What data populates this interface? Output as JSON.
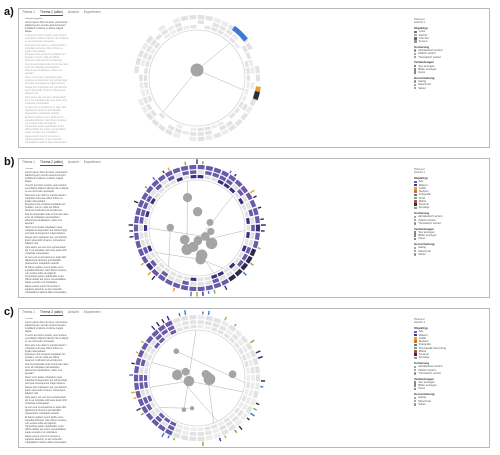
{
  "colors": {
    "ring_light": "#e2e2e2",
    "ring_mid": "#c9c9c9",
    "node": "#a4a4a4",
    "purple": "#6a5aa8",
    "purple_dark": "#3c2f80",
    "navy": "#2a2a4a",
    "orange": "#e0a030",
    "blue": "#3b78d8",
    "link": "#b0b0b0"
  },
  "panels": [
    {
      "label": "a)",
      "tabs": [
        "Thema 1",
        "Thema 2 (aktiv)",
        "Ansicht",
        "Exportieren"
      ],
      "text": [
        {
          "t": "Ausstellungstext",
          "cls": ""
        },
        {
          "t": "Lorem ipsum dolor sit amet, consectetur adipiscing elit, sed do eiusmod tempor incididunt ut labore et dolore magna aliqua.",
          "cls": ""
        },
        {
          "t": "Ut enim ad minim veniam, quis nostrud exercitation ullamco laboris nisi ut aliquip ex ea commodo consequat.",
          "cls": "dim"
        },
        {
          "t": "Duis aute irure dolor in reprehenderit in voluptate velit esse cillum dolore eu fugiat nulla pariatur.",
          "cls": "dim"
        },
        {
          "t": "Excepteur sint occaecat cupidatat non proident, sunt in culpa qui officia deserunt mollit anim id est laborum.",
          "cls": "dim"
        },
        {
          "t": "Sed ut perspiciatis unde omnis iste natus error sit voluptatem accusantium doloremque laudantium, totam rem aperiam.",
          "cls": "dim"
        },
        {
          "t": "Nemo enim ipsam voluptatem quia voluptas sit aspernatur aut odit aut fugit, sed quia consequuntur magni dolores.",
          "cls": "dim"
        },
        {
          "t": "Neque porro quisquam est, qui dolorem ipsum quia dolor sit amet, consectetur, adipisci velit.",
          "cls": "dim"
        },
        {
          "t": "Quis autem vel eum iure reprehenderit qui in ea voluptate velit esse quam nihil molestiae consequatur.",
          "cls": "dim"
        },
        {
          "t": "At vero eos et accusamus et iusto odio dignissimos ducimus qui blanditiis praesentium voluptatum deleniti.",
          "cls": "dim"
        },
        {
          "t": "Et harum quidem rerum facilis est et expedita distinctio. Nam libero tempore, cum soluta nobis est eligendi.",
          "cls": "dim"
        },
        {
          "t": "Temporibus autem quibusdam et aut officiis debitis aut rerum necessitatibus saepe eveniet ut et voluptates.",
          "cls": "dim"
        },
        {
          "t": "Itaque earum rerum hic tenetur a sapiente delectus, ut aut reiciendis voluptatibus maiores alias consequatur.",
          "cls": "dim"
        }
      ],
      "ring_mode": "sparse",
      "highlights": [
        {
          "pos": 0.1,
          "span": 0.045,
          "color": "blue"
        },
        {
          "pos": 0.272,
          "span": 0.035,
          "color": "orange"
        },
        {
          "pos": 0.285,
          "span": 0.02,
          "color": "navy"
        }
      ],
      "legend": {
        "top": [
          "Thema 2",
          "Ansicht 1"
        ],
        "groups": [
          {
            "title": "Objekttyp",
            "rows": [
              {
                "label": "Links",
                "swatch": "#3b78d8"
              },
              {
                "label": "Rechts",
                "swatch": "#e0a030"
              },
              {
                "label": "Link-Set",
                "swatch": "#6a5aa8"
              },
              {
                "label": "Knoten",
                "swatch": "#999999"
              }
            ]
          },
          {
            "title": "Sortierung",
            "rows": [
              {
                "label": "Alphabetisch sortiert",
                "radio": true
              },
              {
                "label": "Zeitlich sortiert",
                "radio": false
              },
              {
                "label": "Thematisch sortiert",
                "radio": false
              }
            ]
          },
          {
            "title": "Verbindungen",
            "rows": [
              {
                "label": "Text anzeigen",
                "check": true
              },
              {
                "label": "Bilder anzeigen",
                "check": true
              },
              {
                "label": "Keine",
                "check": false
              }
            ]
          },
          {
            "title": "Hervorhebung",
            "rows": [
              {
                "label": "Häufig",
                "radio": true
              },
              {
                "label": "Manchmal",
                "radio": false
              },
              {
                "label": "Selten",
                "radio": false
              }
            ]
          }
        ]
      }
    },
    {
      "label": "b)",
      "tabs": [
        "Thema 1",
        "Thema 2 (aktiv)",
        "Ansicht",
        "Exportieren"
      ],
      "text": [
        {
          "t": "Thema",
          "cls": ""
        },
        {
          "t": "Lorem ipsum dolor sit amet, consectetur adipiscing elit, sed do eiusmod tempor incididunt ut labore et dolore magna aliqua.",
          "cls": ""
        },
        {
          "t": "Ut enim ad minim veniam, quis nostrud exercitation ullamco laboris nisi ut aliquip ex ea commodo consequat.",
          "cls": ""
        },
        {
          "t": "Duis aute irure dolor in reprehenderit in voluptate velit esse cillum dolore eu fugiat nulla pariatur.",
          "cls": ""
        },
        {
          "t": "Excepteur sint occaecat cupidatat non proident, sunt in culpa qui officia deserunt mollit anim id est laborum.",
          "cls": ""
        },
        {
          "t": "Sed ut perspiciatis unde omnis iste natus error sit voluptatem accusantium doloremque laudantium, totam rem aperiam.",
          "cls": ""
        },
        {
          "t": "Nemo enim ipsam voluptatem quia voluptas sit aspernatur aut odit aut fugit, sed quia consequuntur magni dolores.",
          "cls": ""
        },
        {
          "t": "Neque porro quisquam est, qui dolorem ipsum quia dolor sit amet, consectetur, adipisci velit.",
          "cls": ""
        },
        {
          "t": "Quis autem vel eum iure reprehenderit qui in ea voluptate velit esse quam nihil molestiae consequatur.",
          "cls": ""
        },
        {
          "t": "At vero eos et accusamus et iusto odio dignissimos ducimus qui blanditiis praesentium voluptatum deleniti.",
          "cls": ""
        },
        {
          "t": "Et harum quidem rerum facilis est et expedita distinctio. Nam libero tempore, cum soluta nobis est eligendi.",
          "cls": ""
        },
        {
          "t": "Temporibus autem quibusdam et aut officiis debitis aut rerum necessitatibus saepe eveniet ut et voluptates.",
          "cls": ""
        },
        {
          "t": "Itaque earum rerum hic tenetur a sapiente delectus, ut aut reiciendis voluptatibus maiores alias consequatur.",
          "cls": ""
        }
      ],
      "ring_mode": "full",
      "highlights": [],
      "legend": {
        "top": [
          "Thema 2",
          "Ansicht 1"
        ],
        "groups": [
          {
            "title": "Objekttyp",
            "rows": [
              {
                "label": "Alle",
                "swatch": "#6a5aa8"
              },
              {
                "label": "Malerei",
                "swatch": "#3c2f80"
              },
              {
                "label": "Grafik",
                "swatch": "#e0a030"
              },
              {
                "label": "Skulptur",
                "swatch": "#d07020"
              },
              {
                "label": "Fotografie",
                "swatch": "#3b78d8"
              },
              {
                "label": "Textil",
                "swatch": "#7fb04a"
              },
              {
                "label": "Möbel",
                "swatch": "#b04a4a"
              },
              {
                "label": "Keramik",
                "swatch": "#2a2a4a"
              },
              {
                "label": "Sonstige",
                "swatch": "#999999"
              }
            ]
          },
          {
            "title": "Sortierung",
            "rows": [
              {
                "label": "Alphabetisch sortiert",
                "radio": true
              },
              {
                "label": "Zeitlich sortiert",
                "radio": false
              },
              {
                "label": "Thematisch sortiert",
                "radio": false
              }
            ]
          },
          {
            "title": "Verbindungen",
            "rows": [
              {
                "label": "Text anzeigen",
                "check": true
              },
              {
                "label": "Bilder anzeigen",
                "check": true
              },
              {
                "label": "Keine",
                "check": false
              }
            ]
          },
          {
            "title": "Hervorhebung",
            "rows": [
              {
                "label": "Häufig",
                "radio": true
              },
              {
                "label": "Manchmal",
                "radio": false
              },
              {
                "label": "Selten",
                "radio": false
              }
            ]
          }
        ]
      }
    },
    {
      "label": "c)",
      "tabs": [
        "Thema 1",
        "Thema 2 (aktiv)",
        "Ansicht",
        "Exportieren"
      ],
      "text": [
        {
          "t": "Thema",
          "cls": ""
        },
        {
          "t": "Lorem ipsum dolor sit amet, consectetur adipiscing elit, sed do eiusmod tempor incididunt ut labore et dolore magna aliqua.",
          "cls": ""
        },
        {
          "t": "Ut enim ad minim veniam, quis nostrud exercitation ullamco laboris nisi ut aliquip ex ea commodo consequat.",
          "cls": ""
        },
        {
          "t": "Duis aute irure dolor in reprehenderit in voluptate velit esse cillum dolore eu fugiat nulla pariatur.",
          "cls": ""
        },
        {
          "t": "Excepteur sint occaecat cupidatat non proident, sunt in culpa qui officia deserunt mollit anim id est laborum.",
          "cls": ""
        },
        {
          "t": "Sed ut perspiciatis unde omnis iste natus error sit voluptatem accusantium doloremque laudantium, totam rem aperiam.",
          "cls": ""
        },
        {
          "t": "Nemo enim ipsam voluptatem quia voluptas sit aspernatur aut odit aut fugit, sed quia consequuntur magni dolores.",
          "cls": ""
        },
        {
          "t": "Neque porro quisquam est, qui dolorem ipsum quia dolor sit amet, consectetur, adipisci velit.",
          "cls": ""
        },
        {
          "t": "Quis autem vel eum iure reprehenderit qui in ea voluptate velit esse quam nihil molestiae consequatur.",
          "cls": ""
        },
        {
          "t": "At vero eos et accusamus et iusto odio dignissimos ducimus qui blanditiis praesentium voluptatum deleniti.",
          "cls": ""
        },
        {
          "t": "Et harum quidem rerum facilis est et expedita distinctio. Nam libero tempore, cum soluta nobis est eligendi.",
          "cls": ""
        },
        {
          "t": "Temporibus autem quibusdam et aut officiis debitis aut rerum necessitatibus saepe eveniet ut et voluptates.",
          "cls": ""
        },
        {
          "t": "Itaque earum rerum hic tenetur a sapiente delectus, ut aut reiciendis voluptatibus maiores alias consequatur.",
          "cls": ""
        }
      ],
      "ring_mode": "partial",
      "highlights": [],
      "legend": {
        "top": [
          "Thema 2",
          "Ansicht 1"
        ],
        "groups": [
          {
            "title": "Objekttyp",
            "rows": [
              {
                "label": "Alle",
                "swatch": "#6a5aa8"
              },
              {
                "label": "Malerei",
                "swatch": "#3c2f80"
              },
              {
                "label": "Grafik",
                "swatch": "#e0a030"
              },
              {
                "label": "Skulptur",
                "swatch": "#d07020"
              },
              {
                "label": "Fotografie",
                "swatch": "#3b78d8"
              },
              {
                "label": "Druckgrafik Sammlung",
                "swatch": "#7fb04a"
              },
              {
                "label": "Möbel",
                "swatch": "#b04a4a"
              },
              {
                "label": "Keramik",
                "swatch": "#2a2a4a"
              },
              {
                "label": "Sonstige",
                "swatch": "#999999"
              }
            ]
          },
          {
            "title": "Sortierung",
            "rows": [
              {
                "label": "Alphabetisch sortiert",
                "radio": true
              },
              {
                "label": "Zeitlich sortiert",
                "radio": false
              },
              {
                "label": "Thematisch sortiert",
                "radio": false
              }
            ]
          },
          {
            "title": "Verbindungen",
            "rows": [
              {
                "label": "Text anzeigen",
                "check": true
              },
              {
                "label": "Bilder anzeigen",
                "check": true
              },
              {
                "label": "Keine",
                "check": false
              }
            ]
          },
          {
            "title": "Hervorhebung",
            "rows": [
              {
                "label": "Häufig",
                "radio": true
              },
              {
                "label": "Manchmal",
                "radio": false
              },
              {
                "label": "Selten",
                "radio": false
              }
            ]
          }
        ]
      }
    }
  ]
}
